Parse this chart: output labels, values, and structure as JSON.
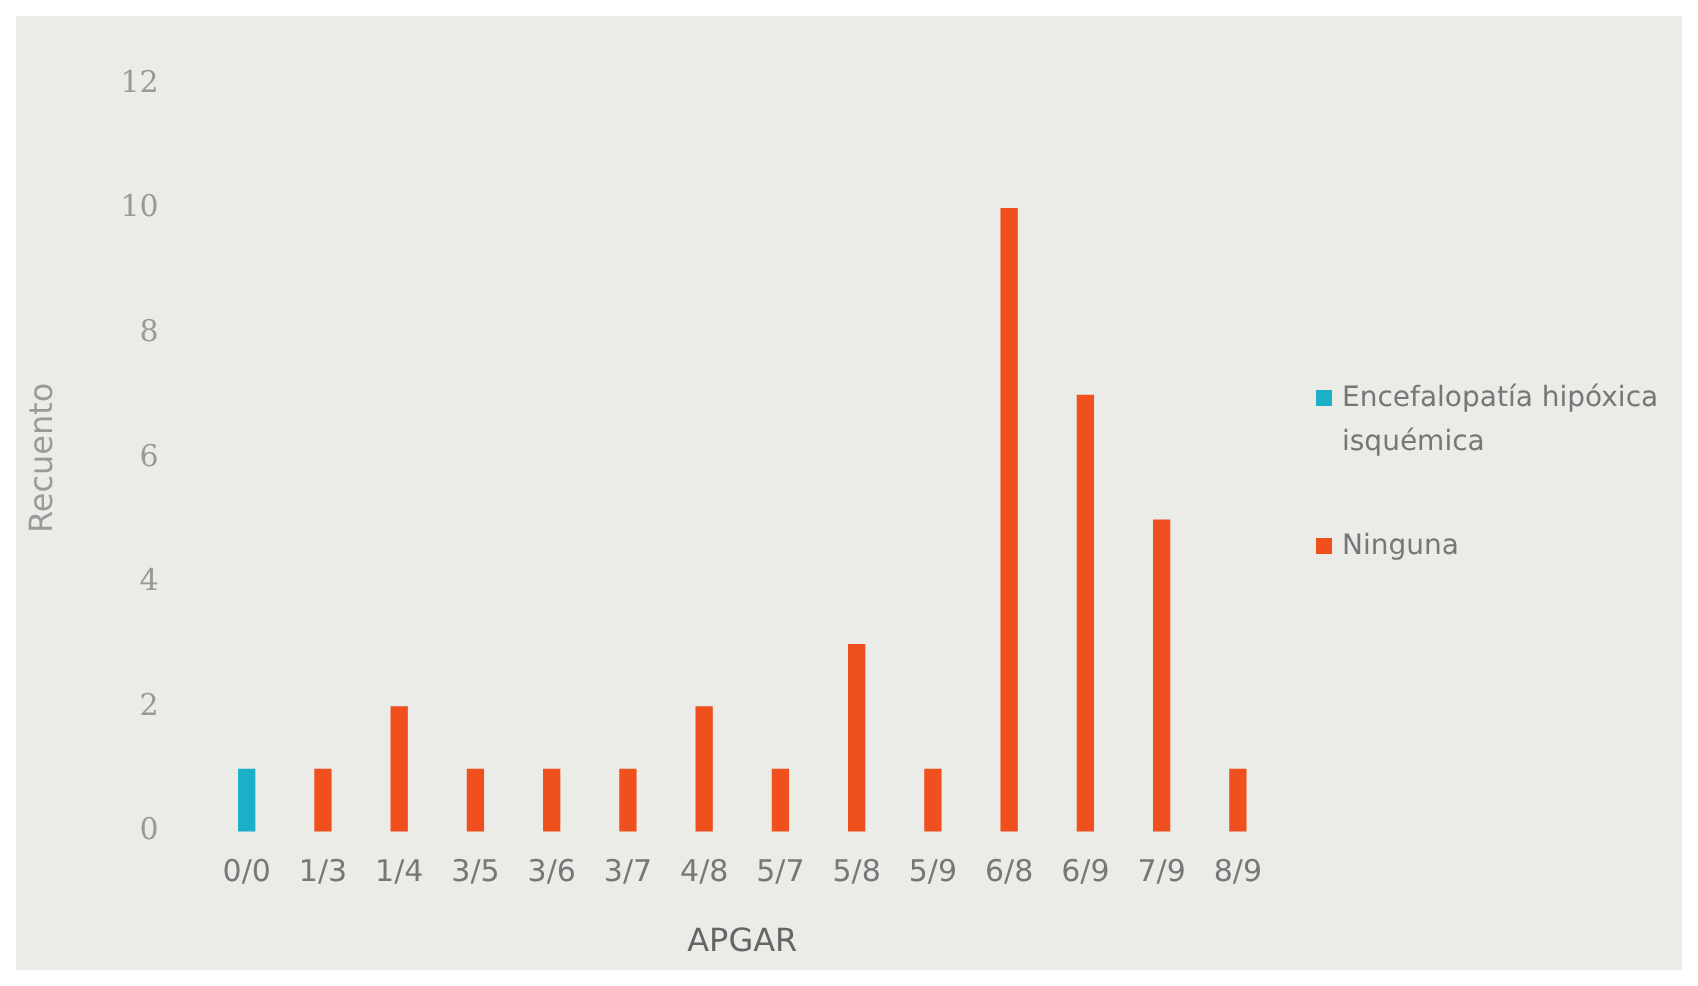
{
  "chart_data": {
    "type": "bar",
    "xlabel": "APGAR",
    "ylabel": "Recuento",
    "categories": [
      "0/0",
      "1/3",
      "1/4",
      "3/5",
      "3/6",
      "3/7",
      "4/8",
      "5/7",
      "5/8",
      "5/9",
      "6/8",
      "6/9",
      "7/9",
      "8/9"
    ],
    "series": [
      {
        "name": "Encefalopatía hipóxica isquémica",
        "color": "#1ab0c8",
        "values": [
          1,
          null,
          null,
          null,
          null,
          null,
          null,
          null,
          null,
          null,
          null,
          null,
          null,
          null
        ]
      },
      {
        "name": "Ninguna",
        "color": "#f0501e",
        "values": [
          null,
          1,
          2,
          1,
          1,
          1,
          2,
          1,
          3,
          1,
          10,
          7,
          5,
          1
        ]
      }
    ],
    "ylim": [
      0,
      12
    ],
    "yticks": [
      0,
      2,
      4,
      6,
      8,
      10,
      12
    ],
    "grid": false,
    "legend": "right"
  }
}
